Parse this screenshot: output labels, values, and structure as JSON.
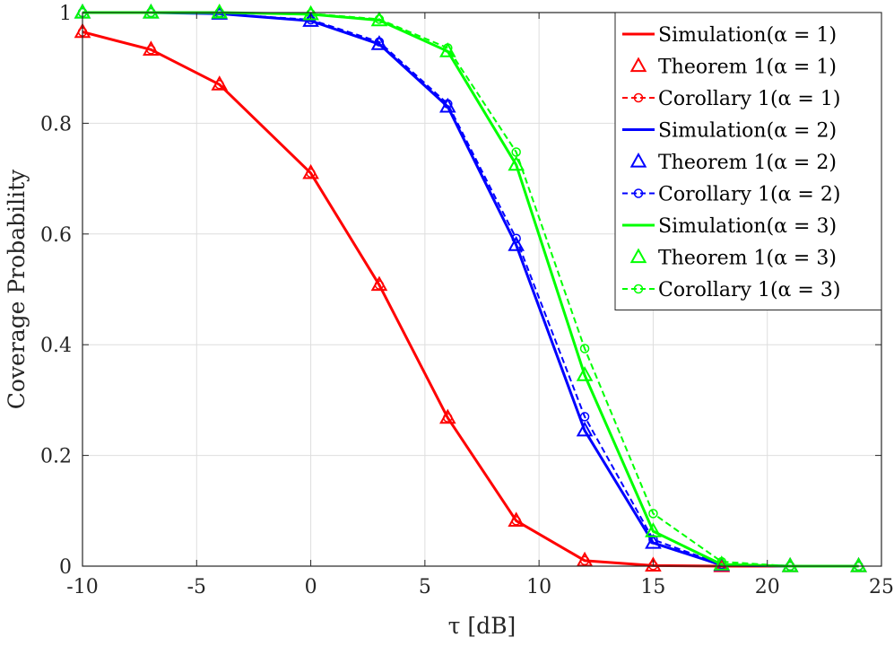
{
  "chart_data": {
    "type": "line",
    "title": "",
    "xlabel": "τ [dB]",
    "ylabel": "Coverage Probability",
    "xlim": [
      -10,
      25
    ],
    "ylim": [
      0,
      1
    ],
    "xticks": [
      -10,
      -5,
      0,
      5,
      10,
      15,
      20,
      25
    ],
    "xtick_labels": [
      "-10",
      "-5",
      "0",
      "5",
      "10",
      "15",
      "20",
      "25"
    ],
    "yticks": [
      0,
      0.2,
      0.4,
      0.6,
      0.8,
      1
    ],
    "ytick_labels": [
      "0",
      "0.2",
      "0.4",
      "0.6",
      "0.8",
      "1"
    ],
    "grid": true,
    "legend_position": "top-right",
    "x": [
      -10,
      -7,
      -4,
      0,
      3,
      6,
      9,
      12,
      15,
      18,
      21,
      24
    ],
    "series": [
      {
        "name": "Simulation(α = 1)",
        "color": "#ff0000",
        "style": "solid",
        "marker": "none",
        "values": [
          0.965,
          0.933,
          0.87,
          0.71,
          0.508,
          0.268,
          0.082,
          0.01,
          0.001,
          0.0,
          0.0,
          0.0
        ]
      },
      {
        "name": "Theorem 1(α = 1)",
        "color": "#ff0000",
        "style": "none",
        "marker": "triangle",
        "values": [
          0.965,
          0.933,
          0.87,
          0.71,
          0.508,
          0.268,
          0.082,
          0.01,
          0.001,
          0.0,
          0.0,
          0.0
        ]
      },
      {
        "name": "Corollary 1(α = 1)",
        "color": "#ff0000",
        "style": "dashed",
        "marker": "circle",
        "values": [
          0.965,
          0.933,
          0.87,
          0.71,
          0.508,
          0.268,
          0.082,
          0.01,
          0.001,
          0.0,
          0.0,
          0.0
        ]
      },
      {
        "name": "Simulation(α = 2)",
        "color": "#0000ff",
        "style": "solid",
        "marker": "none",
        "values": [
          1.0,
          1.0,
          0.998,
          0.985,
          0.943,
          0.83,
          0.58,
          0.245,
          0.042,
          0.002,
          0.0,
          0.0
        ]
      },
      {
        "name": "Theorem 1(α = 2)",
        "color": "#0000ff",
        "style": "none",
        "marker": "triangle",
        "values": [
          1.0,
          1.0,
          0.998,
          0.985,
          0.943,
          0.83,
          0.58,
          0.245,
          0.042,
          0.002,
          0.0,
          0.0
        ]
      },
      {
        "name": "Corollary 1(α = 2)",
        "color": "#0000ff",
        "style": "dashed",
        "marker": "circle",
        "values": [
          1.0,
          1.0,
          0.998,
          0.987,
          0.947,
          0.835,
          0.592,
          0.27,
          0.048,
          0.003,
          0.0,
          0.0
        ]
      },
      {
        "name": "Simulation(α = 3)",
        "color": "#00ff00",
        "style": "solid",
        "marker": "none",
        "values": [
          1.0,
          1.0,
          1.0,
          0.997,
          0.986,
          0.93,
          0.725,
          0.345,
          0.063,
          0.003,
          0.0,
          0.0
        ]
      },
      {
        "name": "Theorem 1(α = 3)",
        "color": "#00ff00",
        "style": "none",
        "marker": "triangle",
        "values": [
          1.0,
          1.0,
          1.0,
          0.997,
          0.986,
          0.93,
          0.725,
          0.345,
          0.063,
          0.003,
          0.0,
          0.0
        ]
      },
      {
        "name": "Corollary 1(α = 3)",
        "color": "#00ff00",
        "style": "dashed",
        "marker": "circle",
        "values": [
          1.0,
          1.0,
          1.0,
          0.998,
          0.988,
          0.936,
          0.748,
          0.393,
          0.095,
          0.008,
          0.0,
          0.0
        ]
      }
    ]
  }
}
